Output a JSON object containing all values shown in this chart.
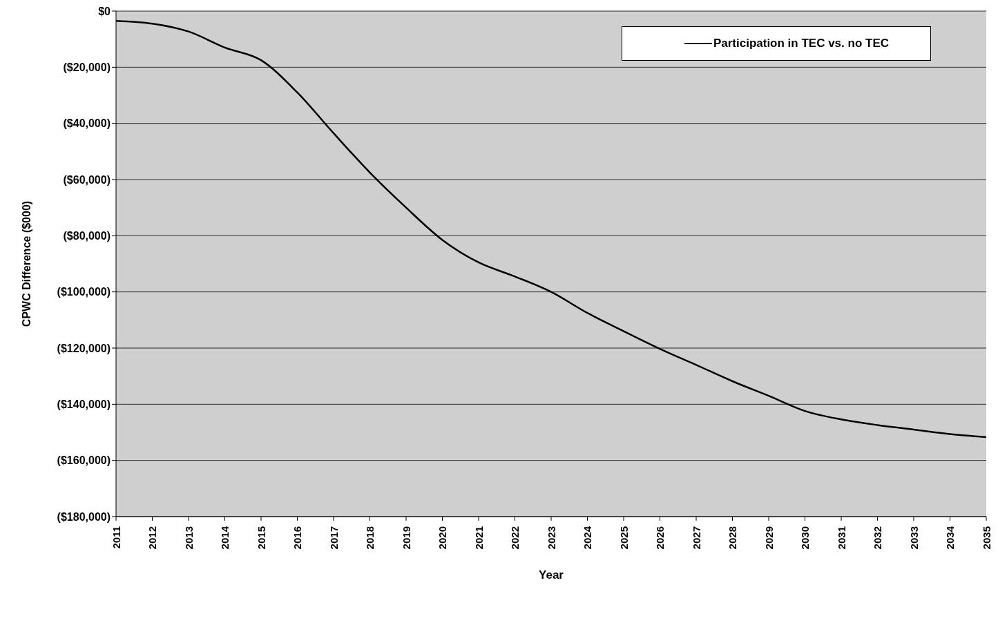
{
  "chart_data": {
    "type": "line",
    "xlabel": "Year",
    "ylabel": "CPWC Difference ($000)",
    "x": [
      2011,
      2012,
      2013,
      2014,
      2015,
      2016,
      2017,
      2018,
      2019,
      2020,
      2021,
      2022,
      2023,
      2024,
      2025,
      2026,
      2027,
      2028,
      2029,
      2030,
      2031,
      2032,
      2033,
      2034,
      2035
    ],
    "series": [
      {
        "name": "Participation in TEC vs. no TEC",
        "color": "#000000",
        "values": [
          -3500,
          -4500,
          -7300,
          -13000,
          -17500,
          -29000,
          -43500,
          -57500,
          -70000,
          -81500,
          -89500,
          -94500,
          -100000,
          -107500,
          -114000,
          -120300,
          -126000,
          -131800,
          -137000,
          -142400,
          -145400,
          -147400,
          -149000,
          -150600,
          -151700
        ]
      }
    ],
    "xlim": [
      2011,
      2035
    ],
    "xticks": [
      2011,
      2012,
      2013,
      2014,
      2015,
      2016,
      2017,
      2018,
      2019,
      2020,
      2021,
      2022,
      2023,
      2024,
      2025,
      2026,
      2027,
      2028,
      2029,
      2030,
      2031,
      2032,
      2033,
      2034,
      2035
    ],
    "ylim": [
      -180000,
      0
    ],
    "yticks": [
      {
        "value": 0,
        "label": "$0"
      },
      {
        "value": -20000,
        "label": "($20,000)"
      },
      {
        "value": -40000,
        "label": "($40,000)"
      },
      {
        "value": -60000,
        "label": "($60,000)"
      },
      {
        "value": -80000,
        "label": "($80,000)"
      },
      {
        "value": -100000,
        "label": "($100,000)"
      },
      {
        "value": -120000,
        "label": "($120,000)"
      },
      {
        "value": -140000,
        "label": "($140,000)"
      },
      {
        "value": -160000,
        "label": "($160,000)"
      },
      {
        "value": -180000,
        "label": "($180,000)"
      }
    ],
    "grid": "y",
    "legend": "top right",
    "marker": "none",
    "line_style": "solid"
  }
}
